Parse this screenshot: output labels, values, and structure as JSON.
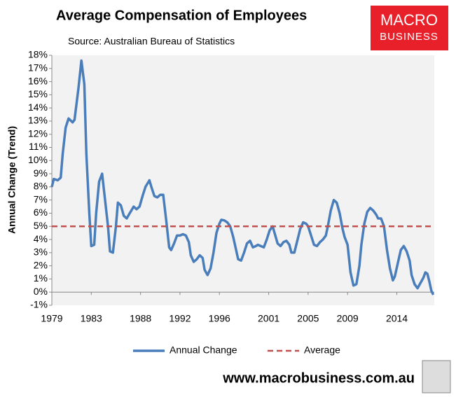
{
  "chart_data": {
    "type": "line",
    "title": "Average Compensation of Employees",
    "subtitle": "Source: Australian Bureau of Statistics",
    "y_label": "Annual Change (Trend)",
    "logo": {
      "line1": "MACRO",
      "line2": "BUSINESS"
    },
    "footer": "www.macrobusiness.com.au",
    "xlim": [
      1979,
      2017.8
    ],
    "xticks": [
      1979,
      1983,
      1988,
      1992,
      1996,
      2001,
      2005,
      2009,
      2014
    ],
    "ylim": [
      -1,
      18
    ],
    "yticks": [
      {
        "value": -1,
        "label": "-1%"
      },
      {
        "value": 0,
        "label": "0%"
      },
      {
        "value": 1,
        "label": "1%"
      },
      {
        "value": 2,
        "label": "2%"
      },
      {
        "value": 3,
        "label": "3%"
      },
      {
        "value": 4,
        "label": "4%"
      },
      {
        "value": 5,
        "label": "5%"
      },
      {
        "value": 6,
        "label": "6%"
      },
      {
        "value": 7,
        "label": "7%"
      },
      {
        "value": 8,
        "label": "8%"
      },
      {
        "value": 9,
        "label": "9%"
      },
      {
        "value": 10,
        "label": "10%"
      },
      {
        "value": 11,
        "label": "11%"
      },
      {
        "value": 12,
        "label": "12%"
      },
      {
        "value": 13,
        "label": "13%"
      },
      {
        "value": 14,
        "label": "14%"
      },
      {
        "value": 15,
        "label": "15%"
      },
      {
        "value": 16,
        "label": "16%"
      },
      {
        "value": 17,
        "label": "17%"
      },
      {
        "value": 18,
        "label": "18%"
      }
    ],
    "grid": false,
    "legend": "bottom",
    "series": [
      {
        "name": "Annual Change",
        "color": "#4a7ebb",
        "dash": false,
        "x": [
          1979.0,
          1979.2,
          1979.6,
          1979.9,
          1980.1,
          1980.4,
          1980.7,
          1981.1,
          1981.3,
          1981.7,
          1982.0,
          1982.3,
          1982.5,
          1982.8,
          1983.0,
          1983.3,
          1983.5,
          1983.8,
          1984.1,
          1984.4,
          1984.7,
          1984.9,
          1985.2,
          1985.5,
          1985.7,
          1986.0,
          1986.3,
          1986.6,
          1986.9,
          1987.3,
          1987.6,
          1987.9,
          1988.2,
          1988.5,
          1988.9,
          1989.1,
          1989.4,
          1989.7,
          1990.0,
          1990.3,
          1990.6,
          1990.9,
          1991.1,
          1991.4,
          1991.7,
          1992.0,
          1992.3,
          1992.6,
          1992.9,
          1993.1,
          1993.4,
          1993.7,
          1994.0,
          1994.3,
          1994.5,
          1994.8,
          1995.1,
          1995.4,
          1995.7,
          1996.0,
          1996.2,
          1996.5,
          1996.8,
          1997.1,
          1997.4,
          1997.7,
          1997.9,
          1998.2,
          1998.5,
          1998.8,
          1999.1,
          1999.4,
          1999.7,
          1999.9,
          2000.2,
          2000.5,
          2000.8,
          2001.1,
          2001.4,
          2001.6,
          2001.9,
          2002.2,
          2002.5,
          2002.8,
          2003.1,
          2003.3,
          2003.6,
          2003.9,
          2004.2,
          2004.5,
          2004.8,
          2005.0,
          2005.3,
          2005.6,
          2005.9,
          2006.2,
          2006.5,
          2006.8,
          2007.0,
          2007.3,
          2007.6,
          2007.9,
          2008.2,
          2008.5,
          2008.7,
          2009.0,
          2009.3,
          2009.6,
          2009.9,
          2010.2,
          2010.4,
          2010.7,
          2011.0,
          2011.3,
          2011.6,
          2011.9,
          2012.1,
          2012.4,
          2012.7,
          2013.0,
          2013.3,
          2013.6,
          2013.8,
          2014.1,
          2014.4,
          2014.7,
          2015.0,
          2015.3,
          2015.5,
          2015.8,
          2016.1,
          2016.4,
          2016.7,
          2016.9,
          2017.1,
          2017.3,
          2017.5,
          2017.7
        ],
        "values": [
          8.0,
          8.6,
          8.5,
          8.7,
          10.5,
          12.5,
          13.2,
          12.9,
          13.1,
          15.5,
          17.6,
          15.8,
          10.5,
          6.0,
          3.5,
          3.6,
          6.0,
          8.4,
          9.0,
          7.0,
          5.0,
          3.1,
          3.0,
          5.0,
          6.8,
          6.6,
          5.8,
          5.6,
          6.0,
          6.5,
          6.3,
          6.5,
          7.3,
          8.0,
          8.5,
          8.0,
          7.3,
          7.2,
          7.4,
          7.4,
          5.5,
          3.4,
          3.2,
          3.7,
          4.3,
          4.3,
          4.4,
          4.3,
          3.8,
          2.8,
          2.3,
          2.5,
          2.8,
          2.6,
          1.7,
          1.3,
          1.8,
          3.0,
          4.5,
          5.2,
          5.5,
          5.45,
          5.3,
          5.0,
          4.2,
          3.2,
          2.5,
          2.4,
          3.0,
          3.7,
          3.9,
          3.4,
          3.5,
          3.6,
          3.5,
          3.4,
          4.0,
          4.7,
          5.0,
          4.5,
          3.7,
          3.5,
          3.8,
          3.9,
          3.6,
          3.0,
          3.0,
          3.9,
          4.8,
          5.3,
          5.2,
          5.0,
          4.3,
          3.6,
          3.5,
          3.8,
          4.0,
          4.3,
          5.0,
          6.2,
          7.0,
          6.8,
          6.0,
          4.8,
          4.2,
          3.6,
          1.5,
          0.5,
          0.6,
          2.0,
          3.6,
          5.2,
          6.1,
          6.4,
          6.2,
          5.9,
          5.6,
          5.6,
          5.0,
          3.2,
          1.8,
          0.9,
          1.2,
          2.2,
          3.2,
          3.5,
          3.1,
          2.4,
          1.3,
          0.6,
          0.3,
          0.7,
          1.1,
          1.5,
          1.4,
          0.8,
          0.1,
          -0.2
        ]
      },
      {
        "name": "Average",
        "color": "#c0504d",
        "dash": true,
        "x": [
          1979,
          2017.8
        ],
        "values": [
          5,
          5
        ]
      }
    ]
  }
}
